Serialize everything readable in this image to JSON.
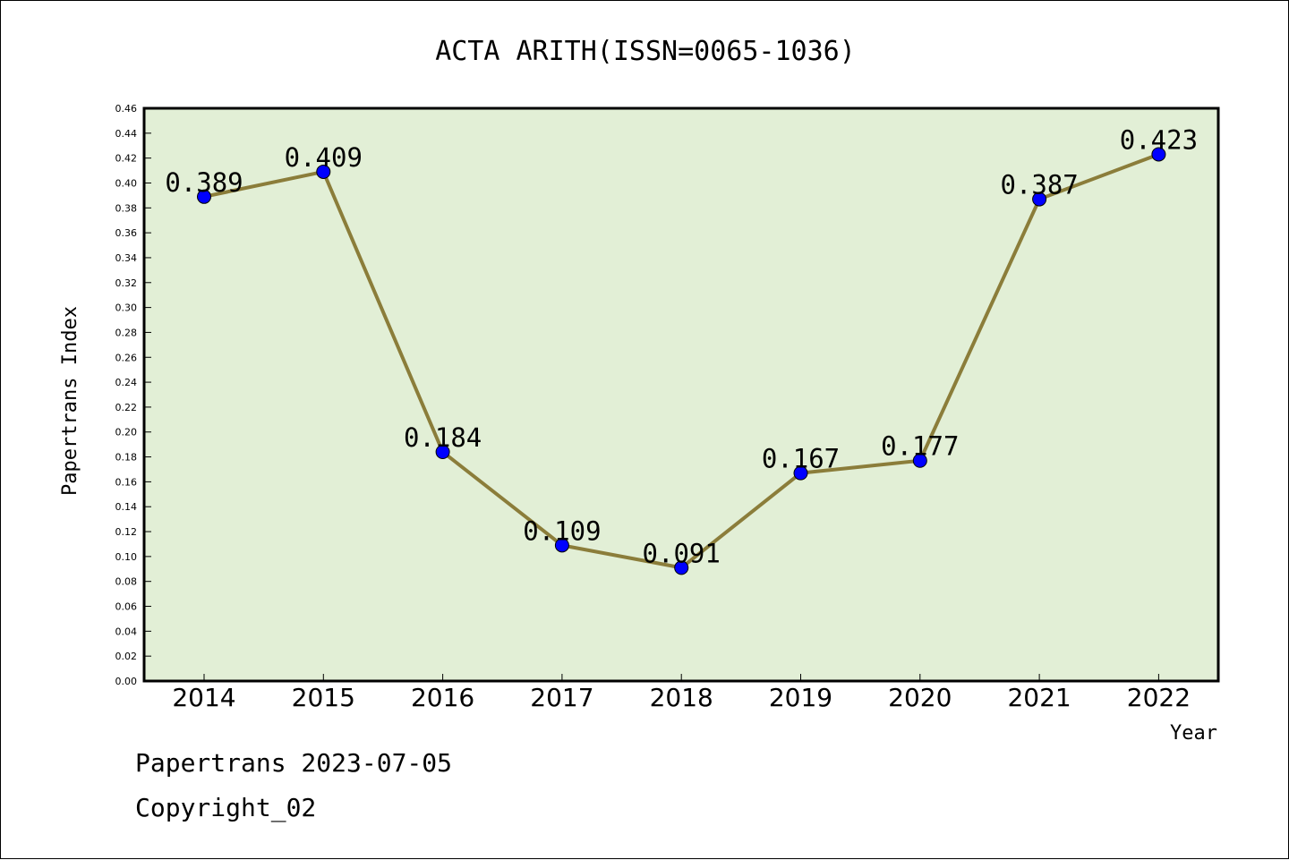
{
  "chart_data": {
    "type": "line",
    "title": "ACTA ARITH(ISSN=0065-1036)",
    "xlabel": "Year",
    "ylabel": "Papertrans Index",
    "categories": [
      "2014",
      "2015",
      "2016",
      "2017",
      "2018",
      "2019",
      "2020",
      "2021",
      "2022"
    ],
    "values": [
      0.389,
      0.409,
      0.184,
      0.109,
      0.091,
      0.167,
      0.177,
      0.387,
      0.423
    ],
    "value_labels": [
      "0.389",
      "0.409",
      "0.184",
      "0.109",
      "0.091",
      "0.167",
      "0.177",
      "0.387",
      "0.423"
    ],
    "ylim": [
      0,
      0.46
    ],
    "yticks": [
      "0.00",
      "0.02",
      "0.04",
      "0.06",
      "0.08",
      "0.10",
      "0.12",
      "0.14",
      "0.16",
      "0.18",
      "0.20",
      "0.22",
      "0.24",
      "0.26",
      "0.28",
      "0.30",
      "0.32",
      "0.34",
      "0.36",
      "0.38",
      "0.40",
      "0.42",
      "0.44",
      "0.46"
    ],
    "grid": false,
    "legend": "none",
    "colors": {
      "line": "#8b7d3a",
      "marker": "#0000ff",
      "plot_bg": "#e2efd6"
    }
  },
  "footer": {
    "line1": "Papertrans 2023-07-05",
    "line2": "Copyright_02"
  }
}
